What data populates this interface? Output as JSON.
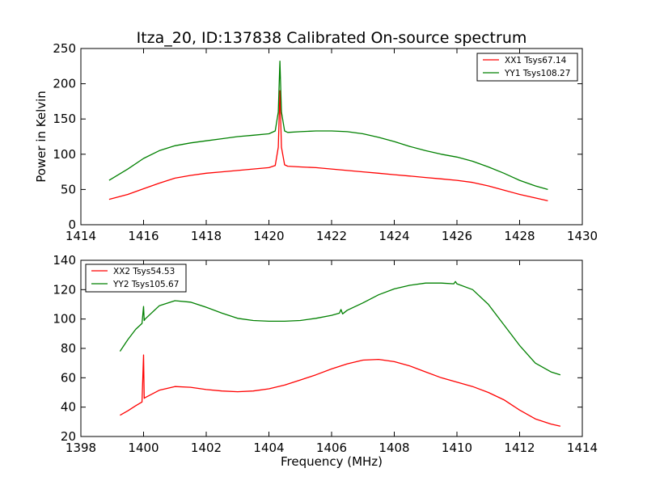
{
  "title": "Itza_20, ID:137838 Calibrated On-source spectrum",
  "chart_data": [
    {
      "type": "line",
      "ylabel": "Power in Kelvin",
      "xlabel": "",
      "xlim": [
        1414,
        1430
      ],
      "ylim": [
        0,
        250
      ],
      "xticks": [
        1414,
        1416,
        1418,
        1420,
        1422,
        1424,
        1426,
        1428,
        1430
      ],
      "yticks": [
        0,
        50,
        100,
        150,
        200,
        250
      ],
      "legend_position": "top-right",
      "series": [
        {
          "name": "XX1 Tsys67.14",
          "color": "#ff0000",
          "x": [
            1414.9,
            1415.5,
            1416.0,
            1416.5,
            1417.0,
            1417.5,
            1418.0,
            1418.5,
            1419.0,
            1419.5,
            1420.0,
            1420.2,
            1420.3,
            1420.35,
            1420.4,
            1420.5,
            1420.6,
            1421.0,
            1421.5,
            1422.0,
            1422.5,
            1423.0,
            1423.5,
            1424.0,
            1424.5,
            1425.0,
            1425.5,
            1426.0,
            1426.5,
            1427.0,
            1427.5,
            1428.0,
            1428.5,
            1428.9
          ],
          "y": [
            36,
            43,
            51,
            59,
            66,
            70,
            73,
            75,
            77,
            79,
            81,
            84,
            110,
            190,
            110,
            85,
            83,
            82,
            81,
            79,
            77,
            75,
            73,
            71,
            69,
            67,
            65,
            63,
            60,
            55,
            49,
            43,
            38,
            34
          ]
        },
        {
          "name": "YY1 Tsys108.27",
          "color": "#008000",
          "x": [
            1414.9,
            1415.5,
            1416.0,
            1416.5,
            1417.0,
            1417.5,
            1418.0,
            1418.5,
            1419.0,
            1419.5,
            1420.0,
            1420.2,
            1420.3,
            1420.35,
            1420.4,
            1420.5,
            1420.6,
            1421.0,
            1421.5,
            1422.0,
            1422.5,
            1423.0,
            1423.5,
            1424.0,
            1424.5,
            1425.0,
            1425.5,
            1426.0,
            1426.5,
            1427.0,
            1427.5,
            1428.0,
            1428.5,
            1428.9
          ],
          "y": [
            63,
            79,
            94,
            105,
            112,
            116,
            119,
            122,
            125,
            127,
            129,
            133,
            160,
            232,
            160,
            133,
            131,
            132,
            133,
            133,
            132,
            129,
            124,
            118,
            111,
            105,
            100,
            96,
            90,
            82,
            73,
            63,
            55,
            50
          ]
        }
      ]
    },
    {
      "type": "line",
      "ylabel": "",
      "xlabel": "Frequency (MHz)",
      "xlim": [
        1398,
        1414
      ],
      "ylim": [
        20,
        140
      ],
      "xticks": [
        1398,
        1400,
        1402,
        1404,
        1406,
        1408,
        1410,
        1412,
        1414
      ],
      "yticks": [
        20,
        40,
        60,
        80,
        100,
        120,
        140
      ],
      "legend_position": "top-left",
      "series": [
        {
          "name": "XX2 Tsys54.53",
          "color": "#ff0000",
          "x": [
            1399.25,
            1399.5,
            1399.75,
            1399.95,
            1400.0,
            1400.02,
            1400.05,
            1400.5,
            1401.0,
            1401.5,
            1402.0,
            1402.5,
            1403.0,
            1403.5,
            1404.0,
            1404.5,
            1405.0,
            1405.5,
            1406.0,
            1406.5,
            1407.0,
            1407.5,
            1408.0,
            1408.5,
            1409.0,
            1409.5,
            1410.0,
            1410.5,
            1411.0,
            1411.5,
            1412.0,
            1412.5,
            1413.0,
            1413.3
          ],
          "y": [
            34.5,
            37.5,
            41,
            43.5,
            75.5,
            46,
            46.5,
            51.5,
            54,
            53.5,
            52,
            51,
            50.5,
            51,
            52.5,
            55,
            58.5,
            62,
            66,
            69.5,
            72,
            72.5,
            71,
            68,
            64,
            60,
            57,
            54,
            50,
            45,
            38,
            32,
            28.5,
            27
          ]
        },
        {
          "name": "YY2 Tsys105.67",
          "color": "#008000",
          "x": [
            1399.25,
            1399.5,
            1399.75,
            1399.95,
            1400.0,
            1400.02,
            1400.05,
            1400.5,
            1401.0,
            1401.5,
            1402.0,
            1402.5,
            1403.0,
            1403.5,
            1404.0,
            1404.5,
            1405.0,
            1405.5,
            1406.0,
            1406.25,
            1406.3,
            1406.35,
            1406.5,
            1407.0,
            1407.5,
            1408.0,
            1408.5,
            1409.0,
            1409.5,
            1409.9,
            1409.95,
            1410.0,
            1410.5,
            1411.0,
            1411.5,
            1412.0,
            1412.5,
            1413.0,
            1413.3
          ],
          "y": [
            78,
            86,
            93,
            97,
            108.5,
            99,
            100,
            109,
            112.5,
            111.5,
            108,
            104,
            100.5,
            99,
            98.5,
            98.5,
            99,
            100.5,
            102.5,
            104,
            106.5,
            103.5,
            106,
            111,
            116.5,
            120.5,
            123,
            124.5,
            124.5,
            124,
            125.5,
            124,
            120,
            110,
            96,
            82,
            70,
            64,
            62
          ]
        }
      ]
    }
  ]
}
